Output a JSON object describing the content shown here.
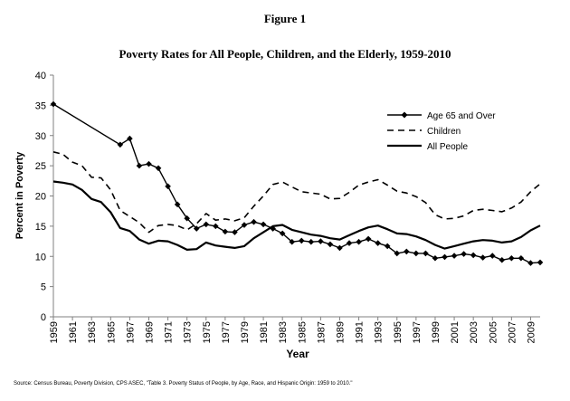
{
  "figure_label": "Figure 1",
  "source": "Source: Census Bureau, Poverty Division, CPS ASEC, \"Table 3. Poverty Status of People, by Age, Race, and Hispanic Origin: 1959 to 2010.\"",
  "chart_data": {
    "type": "line",
    "title": "Poverty Rates for All People, Children, and the Elderly, 1959-2010",
    "xlabel": "Year",
    "ylabel": "Percent in Poverty",
    "xlim": [
      1959,
      2010
    ],
    "ylim": [
      0,
      40
    ],
    "y_ticks": [
      0,
      5,
      10,
      15,
      20,
      25,
      30,
      35,
      40
    ],
    "x_ticks": [
      "1959",
      "1961",
      "1963",
      "1965",
      "1967",
      "1969",
      "1971",
      "1973",
      "1975",
      "1977",
      "1979",
      "1981",
      "1983",
      "1985",
      "1987",
      "1989",
      "1991",
      "1993",
      "1995",
      "1997",
      "1999",
      "2001",
      "2003",
      "2005",
      "2007",
      "2009"
    ],
    "grid": false,
    "legend_position": "top-right",
    "series": [
      {
        "name": "Age 65 and Over",
        "style": "solid-diamond",
        "x": [
          1959,
          1966,
          1967,
          1968,
          1969,
          1970,
          1971,
          1972,
          1973,
          1974,
          1975,
          1976,
          1977,
          1978,
          1979,
          1980,
          1981,
          1982,
          1983,
          1984,
          1985,
          1986,
          1987,
          1988,
          1989,
          1990,
          1991,
          1992,
          1993,
          1994,
          1995,
          1996,
          1997,
          1998,
          1999,
          2000,
          2001,
          2002,
          2003,
          2004,
          2005,
          2006,
          2007,
          2008,
          2009,
          2010
        ],
        "values": [
          35.2,
          28.5,
          29.5,
          25.0,
          25.3,
          24.6,
          21.6,
          18.6,
          16.3,
          14.6,
          15.3,
          15.0,
          14.1,
          14.0,
          15.2,
          15.7,
          15.3,
          14.6,
          13.8,
          12.4,
          12.6,
          12.4,
          12.5,
          12.0,
          11.4,
          12.2,
          12.4,
          12.9,
          12.2,
          11.7,
          10.5,
          10.8,
          10.5,
          10.5,
          9.7,
          9.9,
          10.1,
          10.4,
          10.2,
          9.8,
          10.1,
          9.4,
          9.7,
          9.7,
          8.9,
          9.0
        ]
      },
      {
        "name": "Children",
        "style": "dashed",
        "x": [
          1959,
          1960,
          1961,
          1962,
          1963,
          1964,
          1965,
          1966,
          1967,
          1968,
          1969,
          1970,
          1971,
          1972,
          1973,
          1974,
          1975,
          1976,
          1977,
          1978,
          1979,
          1980,
          1981,
          1982,
          1983,
          1984,
          1985,
          1986,
          1987,
          1988,
          1989,
          1990,
          1991,
          1992,
          1993,
          1994,
          1995,
          1996,
          1997,
          1998,
          1999,
          2000,
          2001,
          2002,
          2003,
          2004,
          2005,
          2006,
          2007,
          2008,
          2009,
          2010
        ],
        "values": [
          27.3,
          26.9,
          25.6,
          25.0,
          23.1,
          23.0,
          21.0,
          17.6,
          16.6,
          15.6,
          14.0,
          15.1,
          15.3,
          15.1,
          14.4,
          15.4,
          17.1,
          16.0,
          16.2,
          15.9,
          16.4,
          18.3,
          20.0,
          21.9,
          22.3,
          21.5,
          20.7,
          20.5,
          20.3,
          19.5,
          19.6,
          20.6,
          21.8,
          22.3,
          22.7,
          21.8,
          20.8,
          20.5,
          19.9,
          18.9,
          16.9,
          16.2,
          16.3,
          16.7,
          17.6,
          17.8,
          17.6,
          17.4,
          18.0,
          19.0,
          20.7,
          22.0
        ]
      },
      {
        "name": "All People",
        "style": "solid",
        "x": [
          1959,
          1960,
          1961,
          1962,
          1963,
          1964,
          1965,
          1966,
          1967,
          1968,
          1969,
          1970,
          1971,
          1972,
          1973,
          1974,
          1975,
          1976,
          1977,
          1978,
          1979,
          1980,
          1981,
          1982,
          1983,
          1984,
          1985,
          1986,
          1987,
          1988,
          1989,
          1990,
          1991,
          1992,
          1993,
          1994,
          1995,
          1996,
          1997,
          1998,
          1999,
          2000,
          2001,
          2002,
          2003,
          2004,
          2005,
          2006,
          2007,
          2008,
          2009,
          2010
        ],
        "values": [
          22.4,
          22.2,
          21.9,
          21.0,
          19.5,
          19.0,
          17.3,
          14.7,
          14.2,
          12.8,
          12.1,
          12.6,
          12.5,
          11.9,
          11.1,
          11.2,
          12.3,
          11.8,
          11.6,
          11.4,
          11.7,
          13.0,
          14.0,
          15.0,
          15.2,
          14.4,
          14.0,
          13.6,
          13.4,
          13.0,
          12.8,
          13.5,
          14.2,
          14.8,
          15.1,
          14.5,
          13.8,
          13.7,
          13.3,
          12.7,
          11.9,
          11.3,
          11.7,
          12.1,
          12.5,
          12.7,
          12.6,
          12.3,
          12.5,
          13.2,
          14.3,
          15.1
        ]
      }
    ]
  }
}
